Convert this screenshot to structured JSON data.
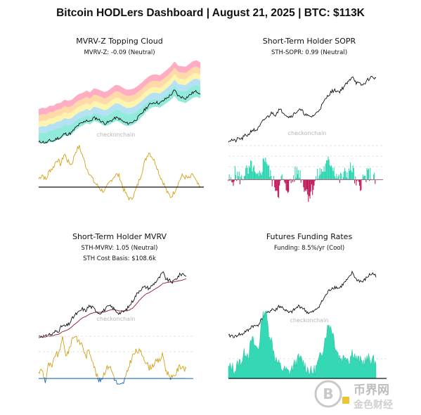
{
  "title": "Bitcoin HODLers Dashboard | August 21, 2025 | BTC: $113K",
  "watermark": {
    "chart_brand": "checkonchain",
    "site_brand_top": "币界网",
    "site_brand_bottom": "金色财经"
  },
  "panels": [
    {
      "title": "MVRV-Z Topping Cloud",
      "subtitles": [
        "MVRV-Z: -0.09 (Neutral)"
      ]
    },
    {
      "title": "Short-Term Holder SOPR",
      "subtitles": [
        "STH-SOPR: 0.99 (Neutral)"
      ]
    },
    {
      "title": "Short-Term Holder MVRV",
      "subtitles": [
        "STH-MVRV: 1.05 (Neutral)",
        "STH Cost Basis: $108.6k"
      ]
    },
    {
      "title": "Futures Funding Rates",
      "subtitles": [
        "Funding: 8.5%/yr (Cool)"
      ]
    }
  ],
  "colors": {
    "price": "#111111",
    "oscillator_gold": "#d4a017",
    "teal": "#2bd6b0",
    "pink_negative": "#c2185b",
    "blue_negative": "#1565c0",
    "cost_basis": "#8b1a3a",
    "cloud_bands": [
      "#ff9fb8",
      "#ffd49a",
      "#fdf2a0",
      "#a8dcf2",
      "#7fe7d3"
    ]
  },
  "chart_data": [
    {
      "type": "line",
      "title": "MVRV-Z Topping Cloud",
      "subtitle": "MVRV-Z: -0.09 (Neutral)",
      "price_series": [
        27,
        28,
        26,
        30,
        29,
        34,
        35,
        42,
        41,
        44,
        52,
        58,
        61,
        66,
        63,
        70,
        68,
        64,
        60,
        62,
        66,
        70,
        68,
        63,
        60,
        61,
        64,
        70,
        77,
        85,
        92,
        96,
        97,
        95,
        100,
        105,
        110,
        118,
        108,
        106,
        104,
        109,
        114,
        116,
        113
      ],
      "oscillator": [
        0.6,
        0.9,
        0.5,
        1.2,
        1.4,
        2.0,
        1.6,
        2.4,
        1.8,
        1.6,
        2.5,
        2.9,
        2.2,
        1.4,
        0.9,
        0.4,
        0.1,
        -0.2,
        -0.3,
        0.2,
        0.6,
        0.9,
        0.8,
        -0.1,
        -0.6,
        -0.9,
        -0.5,
        0.2,
        1.0,
        1.9,
        2.5,
        2.1,
        1.6,
        0.8,
        0.3,
        -0.4,
        -0.7,
        -0.3,
        0.3,
        0.8,
        0.7,
        0.6,
        0.9,
        0.3,
        -0.09
      ],
      "reference_line": 0
    },
    {
      "type": "line",
      "title": "Short-Term Holder SOPR",
      "subtitle": "STH-SOPR: 0.99 (Neutral)",
      "price_series": [
        27,
        28,
        26,
        30,
        29,
        34,
        35,
        42,
        41,
        44,
        52,
        58,
        61,
        66,
        63,
        70,
        68,
        64,
        60,
        62,
        66,
        70,
        68,
        63,
        60,
        61,
        64,
        70,
        77,
        85,
        92,
        96,
        97,
        95,
        100,
        105,
        110,
        118,
        108,
        106,
        104,
        109,
        114,
        116,
        113
      ],
      "oscillator": [
        1.0,
        0.99,
        1.02,
        1.01,
        1.0,
        1.03,
        1.02,
        1.05,
        1.01,
        1.0,
        1.04,
        1.08,
        1.03,
        1.0,
        0.98,
        0.96,
        1.01,
        0.97,
        0.98,
        1.0,
        1.02,
        1.03,
        1.0,
        0.97,
        0.95,
        0.97,
        1.0,
        1.02,
        1.03,
        1.04,
        1.06,
        1.05,
        1.02,
        1.0,
        1.01,
        1.02,
        1.03,
        1.04,
        0.98,
        0.98,
        1.0,
        1.01,
        1.02,
        1.01,
        0.99
      ],
      "reference_line": 1
    },
    {
      "type": "line",
      "title": "Short-Term Holder MVRV",
      "subtitles": [
        "STH-MVRV: 1.05 (Neutral)",
        "STH Cost Basis: $108.6k"
      ],
      "price_series": [
        27,
        28,
        26,
        30,
        29,
        34,
        35,
        42,
        41,
        44,
        52,
        58,
        61,
        66,
        63,
        70,
        68,
        64,
        60,
        62,
        66,
        70,
        68,
        63,
        60,
        61,
        64,
        70,
        77,
        85,
        92,
        96,
        97,
        95,
        100,
        105,
        110,
        118,
        108,
        106,
        104,
        109,
        114,
        116,
        113
      ],
      "cost_basis_series": [
        25,
        26,
        26,
        27,
        27,
        29,
        30,
        33,
        35,
        37,
        41,
        45,
        49,
        53,
        55,
        58,
        60,
        61,
        61,
        61,
        62,
        64,
        65,
        64,
        63,
        63,
        63,
        64,
        67,
        72,
        78,
        83,
        87,
        89,
        92,
        95,
        98,
        102,
        103,
        104,
        104,
        105,
        106,
        107,
        108.6
      ],
      "oscillator": [
        1.04,
        1.06,
        0.98,
        1.1,
        1.07,
        1.17,
        1.15,
        1.28,
        1.16,
        1.18,
        1.27,
        1.29,
        1.24,
        1.23,
        1.14,
        1.19,
        1.13,
        1.04,
        0.98,
        1.01,
        1.06,
        1.09,
        1.04,
        0.98,
        0.95,
        0.96,
        1.01,
        1.09,
        1.15,
        1.18,
        1.18,
        1.16,
        1.11,
        1.07,
        1.09,
        1.11,
        1.12,
        1.16,
        1.05,
        1.02,
        1.0,
        1.04,
        1.08,
        1.08,
        1.05
      ],
      "reference_line": 1
    },
    {
      "type": "area",
      "title": "Futures Funding Rates",
      "subtitle": "Funding: 8.5%/yr (Cool)",
      "price_series": [
        27,
        28,
        26,
        30,
        29,
        34,
        35,
        42,
        41,
        44,
        52,
        58,
        61,
        66,
        63,
        70,
        68,
        64,
        60,
        62,
        66,
        70,
        68,
        63,
        60,
        61,
        64,
        70,
        77,
        85,
        92,
        96,
        97,
        95,
        100,
        105,
        110,
        118,
        108,
        106,
        104,
        109,
        114,
        116,
        113
      ],
      "funding_series": [
        5,
        6,
        4,
        8,
        9,
        14,
        12,
        20,
        16,
        15,
        30,
        35,
        24,
        18,
        10,
        7,
        5,
        4,
        3,
        5,
        8,
        10,
        9,
        6,
        4,
        3,
        5,
        9,
        14,
        22,
        28,
        24,
        16,
        11,
        10,
        12,
        9,
        14,
        10,
        9,
        8,
        9,
        10,
        9,
        8.5
      ]
    }
  ]
}
